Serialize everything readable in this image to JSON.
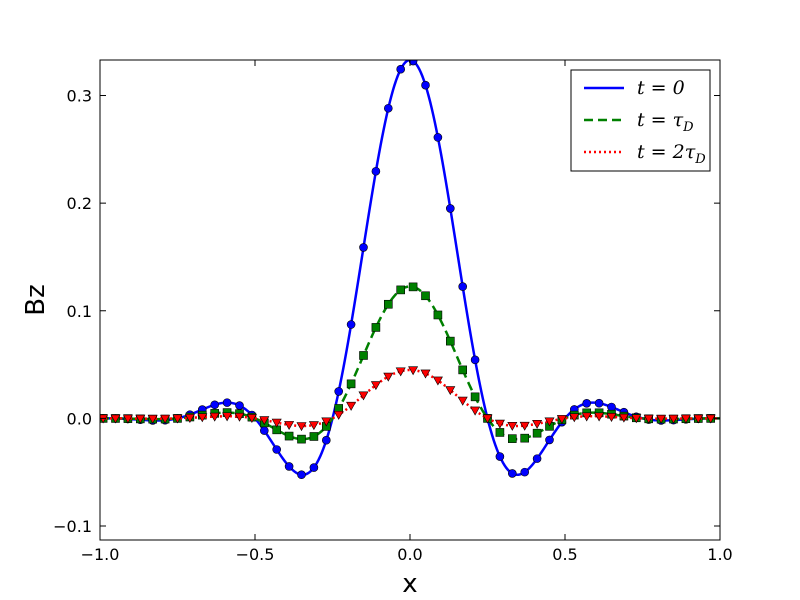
{
  "chart_data": {
    "type": "line",
    "xlabel": "x",
    "ylabel": "Bz",
    "xlim": [
      -1.0,
      1.0
    ],
    "ylim": [
      -0.113,
      0.333
    ],
    "x_ticks": [
      -1.0,
      -0.5,
      0.0,
      0.5,
      1.0
    ],
    "x_tick_labels": [
      "−1.0",
      "−0.5",
      "0.0",
      "0.5",
      "1.0"
    ],
    "y_ticks": [
      -0.1,
      0.0,
      0.1,
      0.2,
      0.3
    ],
    "y_tick_labels": [
      "−0.1",
      "0.0",
      "0.1",
      "0.2",
      "0.3"
    ],
    "grid": false,
    "legend_position": "top-right",
    "series": [
      {
        "name": "t = 0",
        "color": "#0000ff",
        "line_style": "solid",
        "marker": "circle",
        "scale": 1.0
      },
      {
        "name": "t = τD",
        "color": "#008000",
        "line_style": "dashed",
        "marker": "square",
        "scale": 0.368
      },
      {
        "name": "t = 2τD",
        "color": "#ff0000",
        "line_style": "dotted",
        "marker": "triangle-down",
        "scale": 0.135
      }
    ],
    "legend_labels": [
      {
        "prefix": "t",
        "eq": " = ",
        "main": "0",
        "sub": ""
      },
      {
        "prefix": "t",
        "eq": " = ",
        "main": "τ",
        "sub": "D"
      },
      {
        "prefix": "t",
        "eq": " = ",
        "main": "2τ",
        "sub": "D"
      }
    ]
  }
}
